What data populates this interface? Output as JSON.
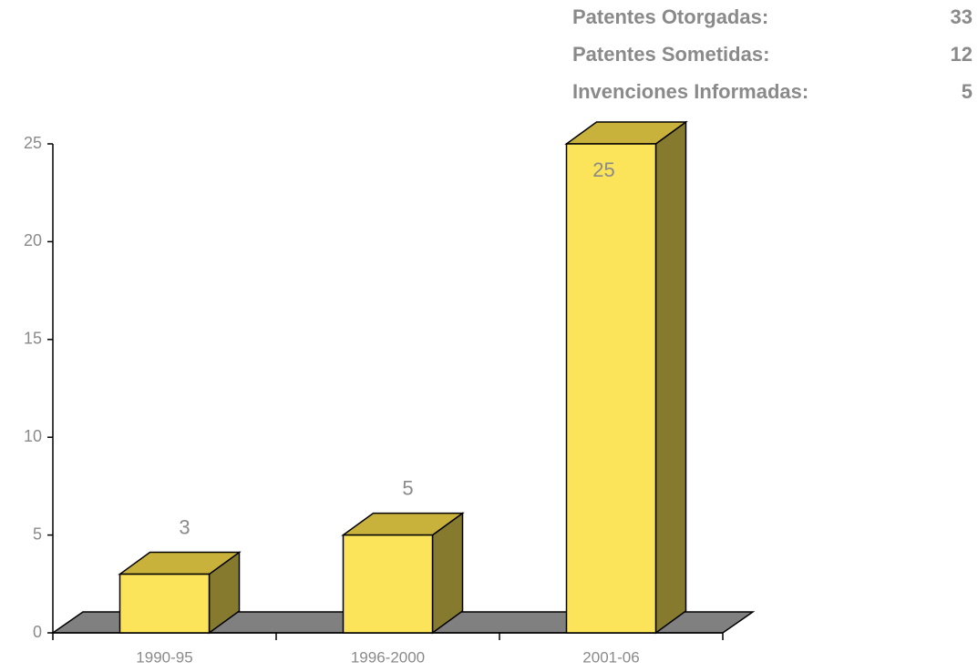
{
  "chart_data": {
    "type": "bar3d",
    "categories": [
      "1990-95",
      "1996-2000",
      "2001-06"
    ],
    "values": [
      3,
      5,
      25
    ],
    "color": "#fbe35a",
    "ylim": [
      0,
      25
    ],
    "yticks": [
      0,
      5,
      10,
      15,
      20,
      25
    ]
  },
  "summary": {
    "rows": [
      {
        "label": "Patentes Otorgadas:",
        "value": "33"
      },
      {
        "label": "Patentes Sometidas:",
        "value": "12"
      },
      {
        "label": "Invenciones Informadas:",
        "value": "5"
      }
    ]
  }
}
